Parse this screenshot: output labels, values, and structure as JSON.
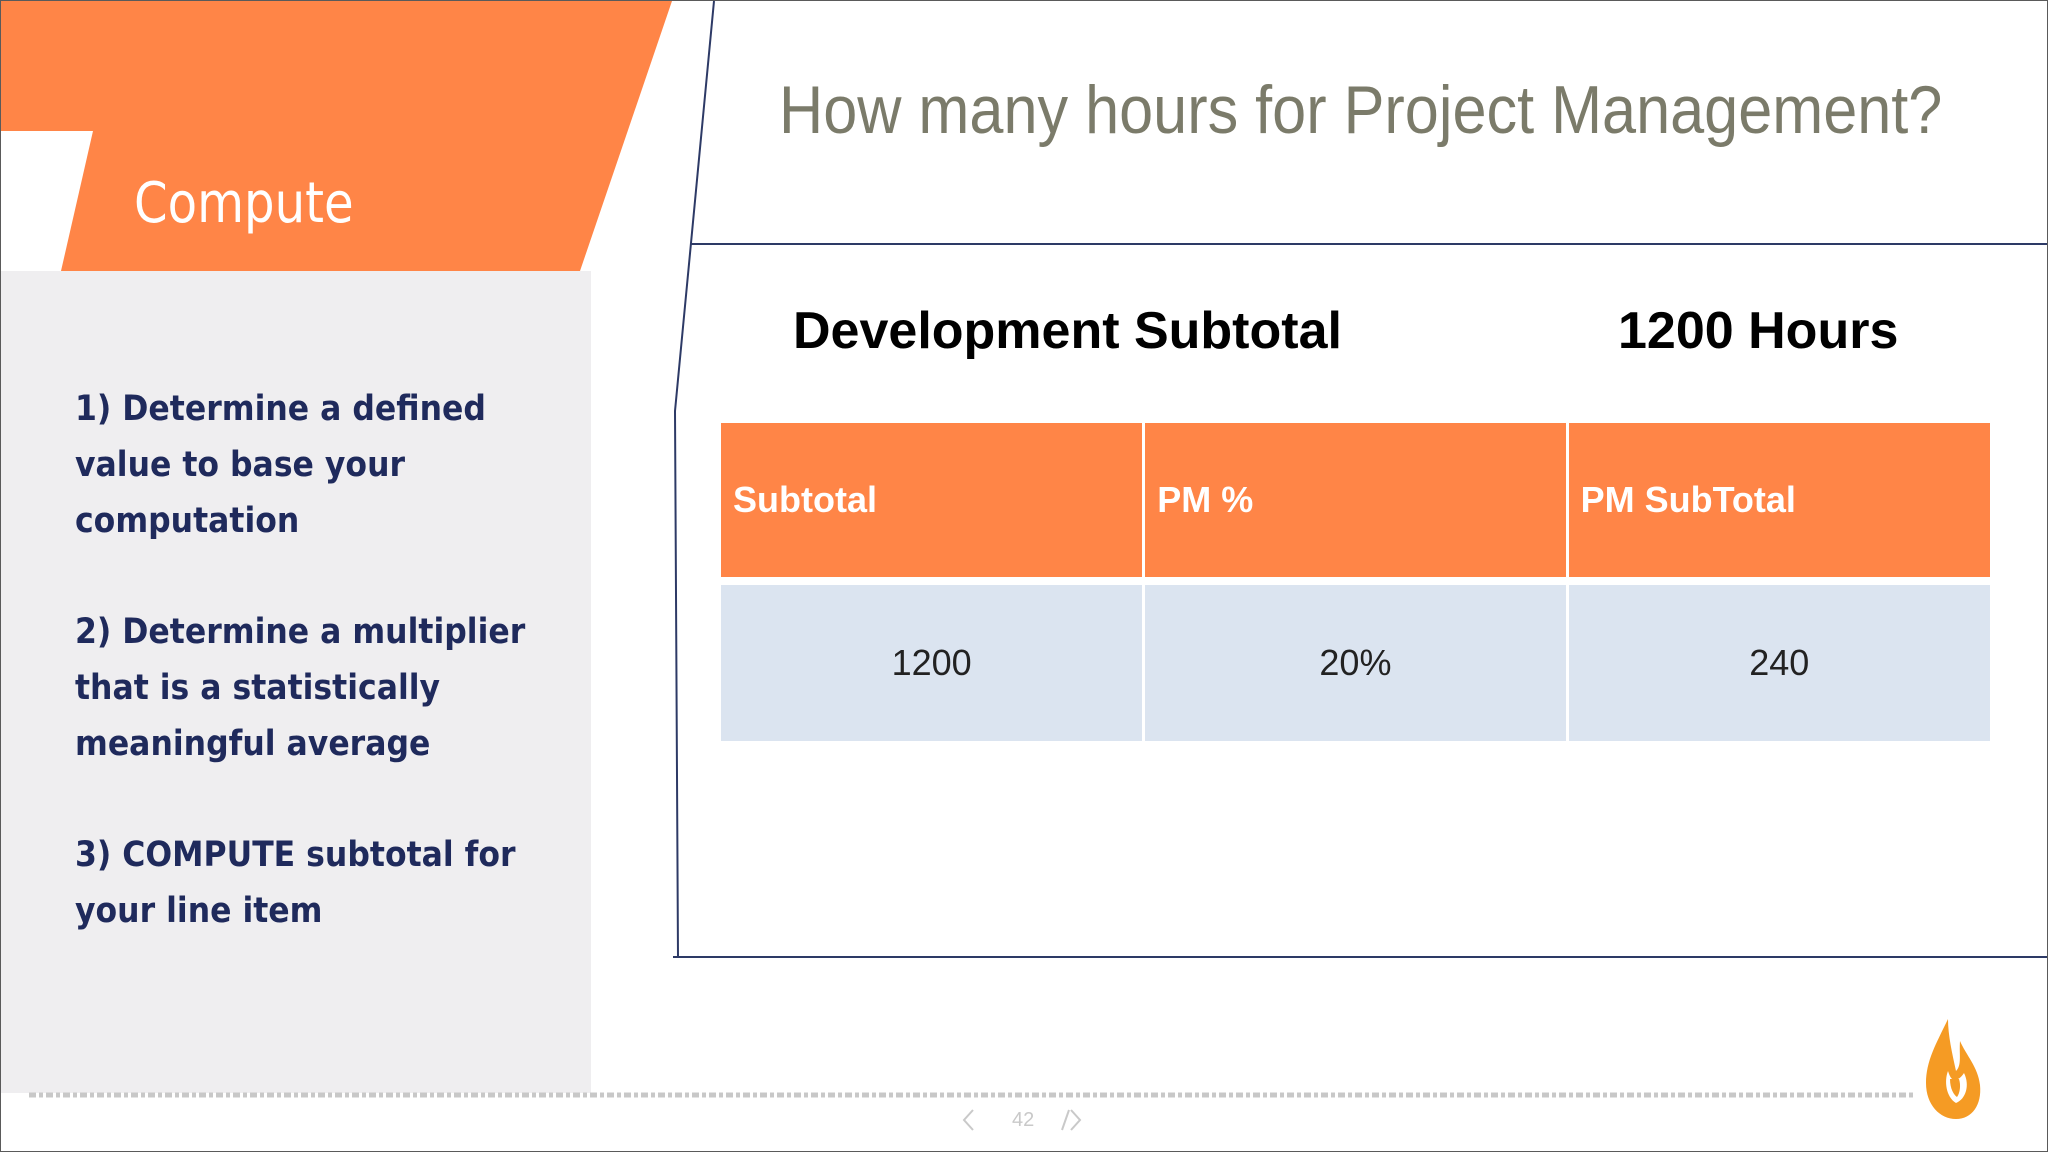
{
  "slide": {
    "section_title": "Compute",
    "steps": [
      "1) Determine a defined value to base your computation",
      "2) Determine a multiplier that is a statistically meaningful average",
      "3) COMPUTE subtotal for your line item"
    ],
    "question": "How many hours for Project Management?",
    "development": {
      "label": "Development Subtotal",
      "value": "1200 Hours"
    },
    "table": {
      "headers": [
        "Subtotal",
        "PM %",
        "PM SubTotal"
      ],
      "row": [
        "1200",
        "20%",
        "240"
      ]
    }
  },
  "pager": {
    "prev_icon": "chevron-left-icon",
    "page_number": "42",
    "next_icon": "chevron-right-icon"
  },
  "colors": {
    "accent_orange": "#ff8547",
    "panel_gray": "#efeef0",
    "step_text": "#1f2a5c",
    "question_text": "#7b7b6a",
    "table_cell": "#dbe4f0"
  }
}
